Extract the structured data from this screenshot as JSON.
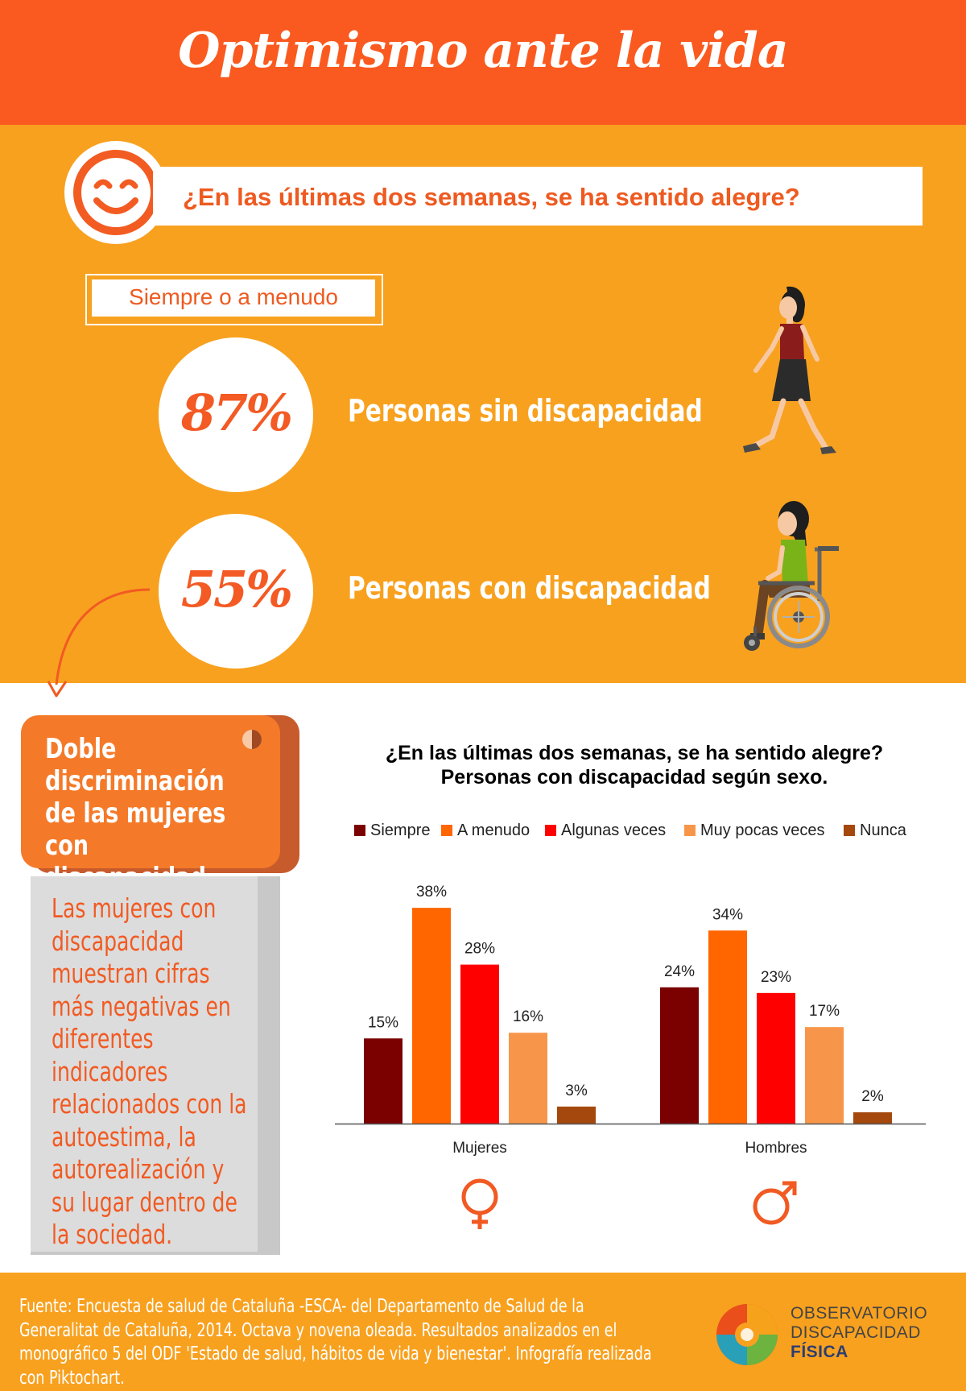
{
  "header": {
    "title": "Optimismo ante la vida"
  },
  "question": {
    "text": "¿En las últimas dos semanas, se ha sentido alegre?",
    "icon": "smiley-icon"
  },
  "tag": {
    "label": "Siempre o a menudo"
  },
  "stats": [
    {
      "value": "87%",
      "label": "Personas sin discapacidad",
      "icon": "walking-woman-icon"
    },
    {
      "value": "55%",
      "label": "Personas con discapacidad",
      "icon": "wheelchair-woman-icon"
    }
  ],
  "card": {
    "title": "Doble discriminación de las mujeres con discapacidad",
    "text": "Las mujeres con discapacidad muestran cifras más negativas en diferentes indicadores relacionados con la autoestima, la autorealización y su lugar dentro de la sociedad."
  },
  "chart_data": {
    "type": "bar",
    "title": "¿En las últimas dos semanas, se ha sentido alegre?",
    "subtitle": "Personas con discapacidad según sexo.",
    "categories": [
      "Mujeres",
      "Hombres"
    ],
    "series": [
      {
        "name": "Siempre",
        "color": "#7b0000",
        "values": [
          15,
          24
        ]
      },
      {
        "name": "A menudo",
        "color": "#ff6600",
        "values": [
          38,
          34
        ]
      },
      {
        "name": "Algunas veces",
        "color": "#ff0000",
        "values": [
          28,
          23
        ]
      },
      {
        "name": "Muy pocas veces",
        "color": "#f7964a",
        "values": [
          16,
          17
        ]
      },
      {
        "name": "Nunca",
        "color": "#a5480e",
        "values": [
          3,
          2
        ]
      }
    ],
    "value_suffix": "%",
    "ylim": [
      0,
      40
    ],
    "legend": "top",
    "grid": false,
    "category_icons": [
      "female-symbol-icon",
      "male-symbol-icon"
    ]
  },
  "footer": {
    "source": "Fuente: Encuesta de salud de Cataluña -ESCA- del Departamento de Salud de la Generalitat de Cataluña, 2014. Octava y novena oleada. Resultados analizados en el monográfico 5 del ODF 'Estado de salud, hábitos de vida y bienestar'. Infografía realizada con Piktochart.",
    "logo_line1": "OBSERVATORIO",
    "logo_line2": "DISCAPACIDAD",
    "logo_line3": "FÍSICA"
  },
  "colors": {
    "header": "#fa5a1f",
    "panel": "#f8a11f",
    "accent": "#f15a22",
    "card": "#f47a29"
  }
}
